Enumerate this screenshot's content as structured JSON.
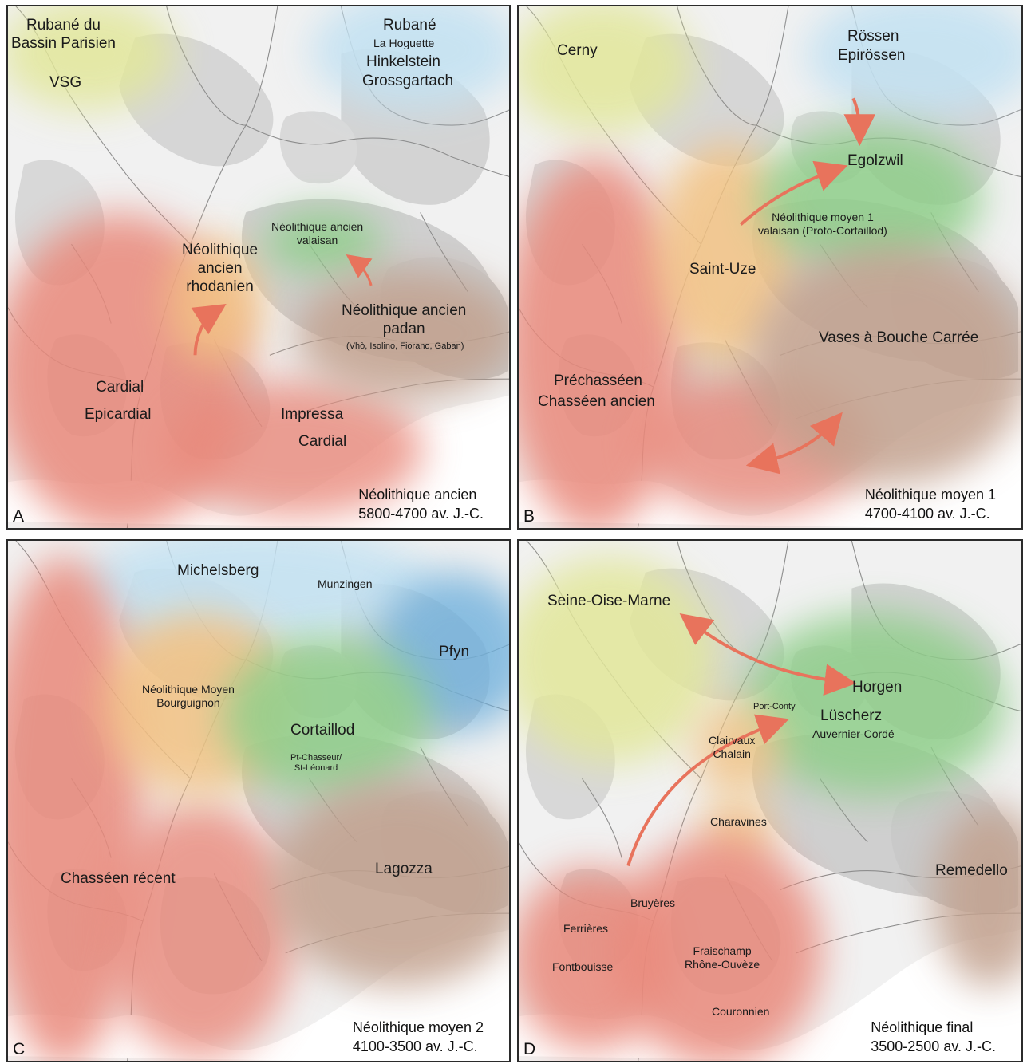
{
  "colors": {
    "cardial_red": "#e9897b",
    "rhone_orange": "#f2c283",
    "valais_green": "#8fce8a",
    "padan_brown": "#c2a18e",
    "rubane_blue": "#c4e2f2",
    "bassin_yellow": "#e2e79a",
    "pfyn_blue": "#6fb0dc",
    "arrow": "#e8735c",
    "relief": "#d3d3d3",
    "rivers": "#8d8d8d"
  },
  "panels": {
    "a": {
      "letter": "A",
      "period": "Néolithique ancien",
      "dates": "5800-4700 av. J.-C.",
      "labels": {
        "rubane_bp": [
          "Rubané du",
          "Bassin Parisien"
        ],
        "vsg": "VSG",
        "rubane": "Rubané",
        "hoguette": "La Hoguette",
        "hinkelstein": "Hinkelstein",
        "grossgartach": "Grossgartach",
        "valaisan": [
          "Néolithique ancien",
          "valaisan"
        ],
        "rhodanien": [
          "Néolithique",
          "ancien",
          "rhodanien"
        ],
        "padan": [
          "Néolithique ancien",
          "padan"
        ],
        "padan_sites": "(Vhò, Isolino, Fiorano, Gaban)",
        "cardial": "Cardial",
        "epicardial": "Epicardial",
        "impressa": "Impressa",
        "cardial_2": "Cardial"
      }
    },
    "b": {
      "letter": "B",
      "period": "Néolithique moyen 1",
      "dates": "4700-4100 av. J.-C.",
      "labels": {
        "cerny": "Cerny",
        "rossen": "Rössen",
        "epirossen": "Epirössen",
        "egolzwil": "Egolzwil",
        "valaisan": [
          "Néolithique moyen 1",
          "valaisan (Proto-Cortaillod)"
        ],
        "saint_uze": "Saint-Uze",
        "vbc": "Vases à Bouche Carrée",
        "prechasseen": "Préchasséen",
        "chasseen_ancien": "Chasséen ancien"
      }
    },
    "c": {
      "letter": "C",
      "period": "Néolithique moyen 2",
      "dates": "4100-3500 av. J.-C.",
      "labels": {
        "michelsberg": "Michelsberg",
        "munzingen": "Munzingen",
        "pfyn": "Pfyn",
        "nmb": [
          "Néolithique Moyen",
          "Bourguignon"
        ],
        "cortaillod": "Cortaillod",
        "pt_chasseur": [
          "Pt-Chasseur/",
          "St-Léonard"
        ],
        "chasseen_recent": "Chasséen récent",
        "lagozza": "Lagozza"
      }
    },
    "d": {
      "letter": "D",
      "period": "Néolithique final",
      "dates": "3500-2500 av. J.-C.",
      "labels": {
        "som": "Seine-Oise-Marne",
        "horgen": "Horgen",
        "port_conty": "Port-Conty",
        "luscherz": "Lüscherz",
        "auvernier": "Auvernier-Cordé",
        "clairvaux": [
          "Clairvaux",
          "Chalain"
        ],
        "charavines": "Charavines",
        "remedello": "Remedello",
        "bruyeres": "Bruyères",
        "ferrieres": "Ferrières",
        "fontbouisse": "Fontbouisse",
        "fraischamp": [
          "Fraischamp",
          "Rhône-Ouvèze"
        ],
        "couronnien": "Couronnien"
      }
    }
  }
}
